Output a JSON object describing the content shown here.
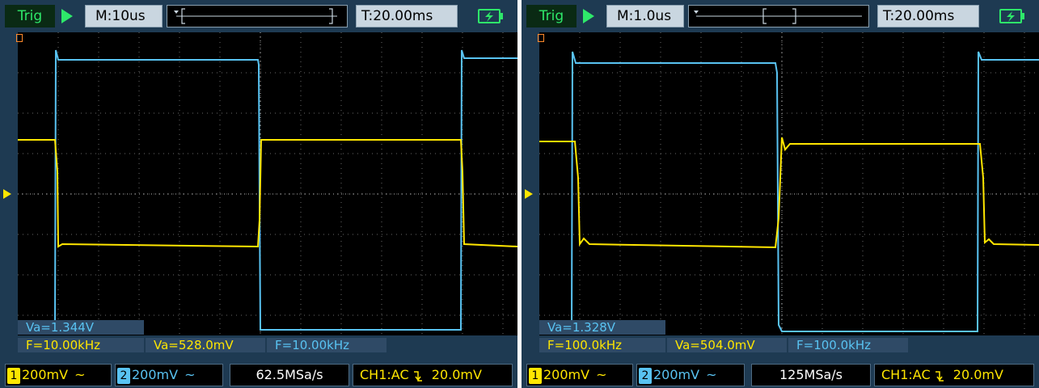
{
  "colors": {
    "ch1": "#ffe600",
    "ch2": "#59c3f2",
    "panel": "#1e3a52",
    "run": "#2ee86a"
  },
  "screens": [
    {
      "status": "Trig",
      "timebase": "M:10us",
      "trigger_time": "T:20.00ms",
      "meas_ch1_amplitude": "Va=1.344V",
      "meas_ch1_frequency": "F=10.00kHz",
      "meas_ch2_amplitude": "Va=528.0mV",
      "meas_ch2_frequency": "F=10.00kHz",
      "ch1_scale": "200mV",
      "ch2_scale": "200mV",
      "coupling_symbol": "~",
      "sample_rate": "62.5MSa/s",
      "trigger_source": "CH1:AC",
      "trigger_level": "20.0mV"
    },
    {
      "status": "Trig",
      "timebase": "M:1.0us",
      "trigger_time": "T:20.00ms",
      "meas_ch1_amplitude": "Va=1.328V",
      "meas_ch1_frequency": "F=100.0kHz",
      "meas_ch2_amplitude": "Va=504.0mV",
      "meas_ch2_frequency": "F=100.0kHz",
      "ch1_scale": "200mV",
      "ch2_scale": "200mV",
      "coupling_symbol": "~",
      "sample_rate": "125MSa/s",
      "trigger_source": "CH1:AC",
      "trigger_level": "20.0mV"
    }
  ],
  "labels": {
    "channel1": "1",
    "channel2": "2"
  }
}
